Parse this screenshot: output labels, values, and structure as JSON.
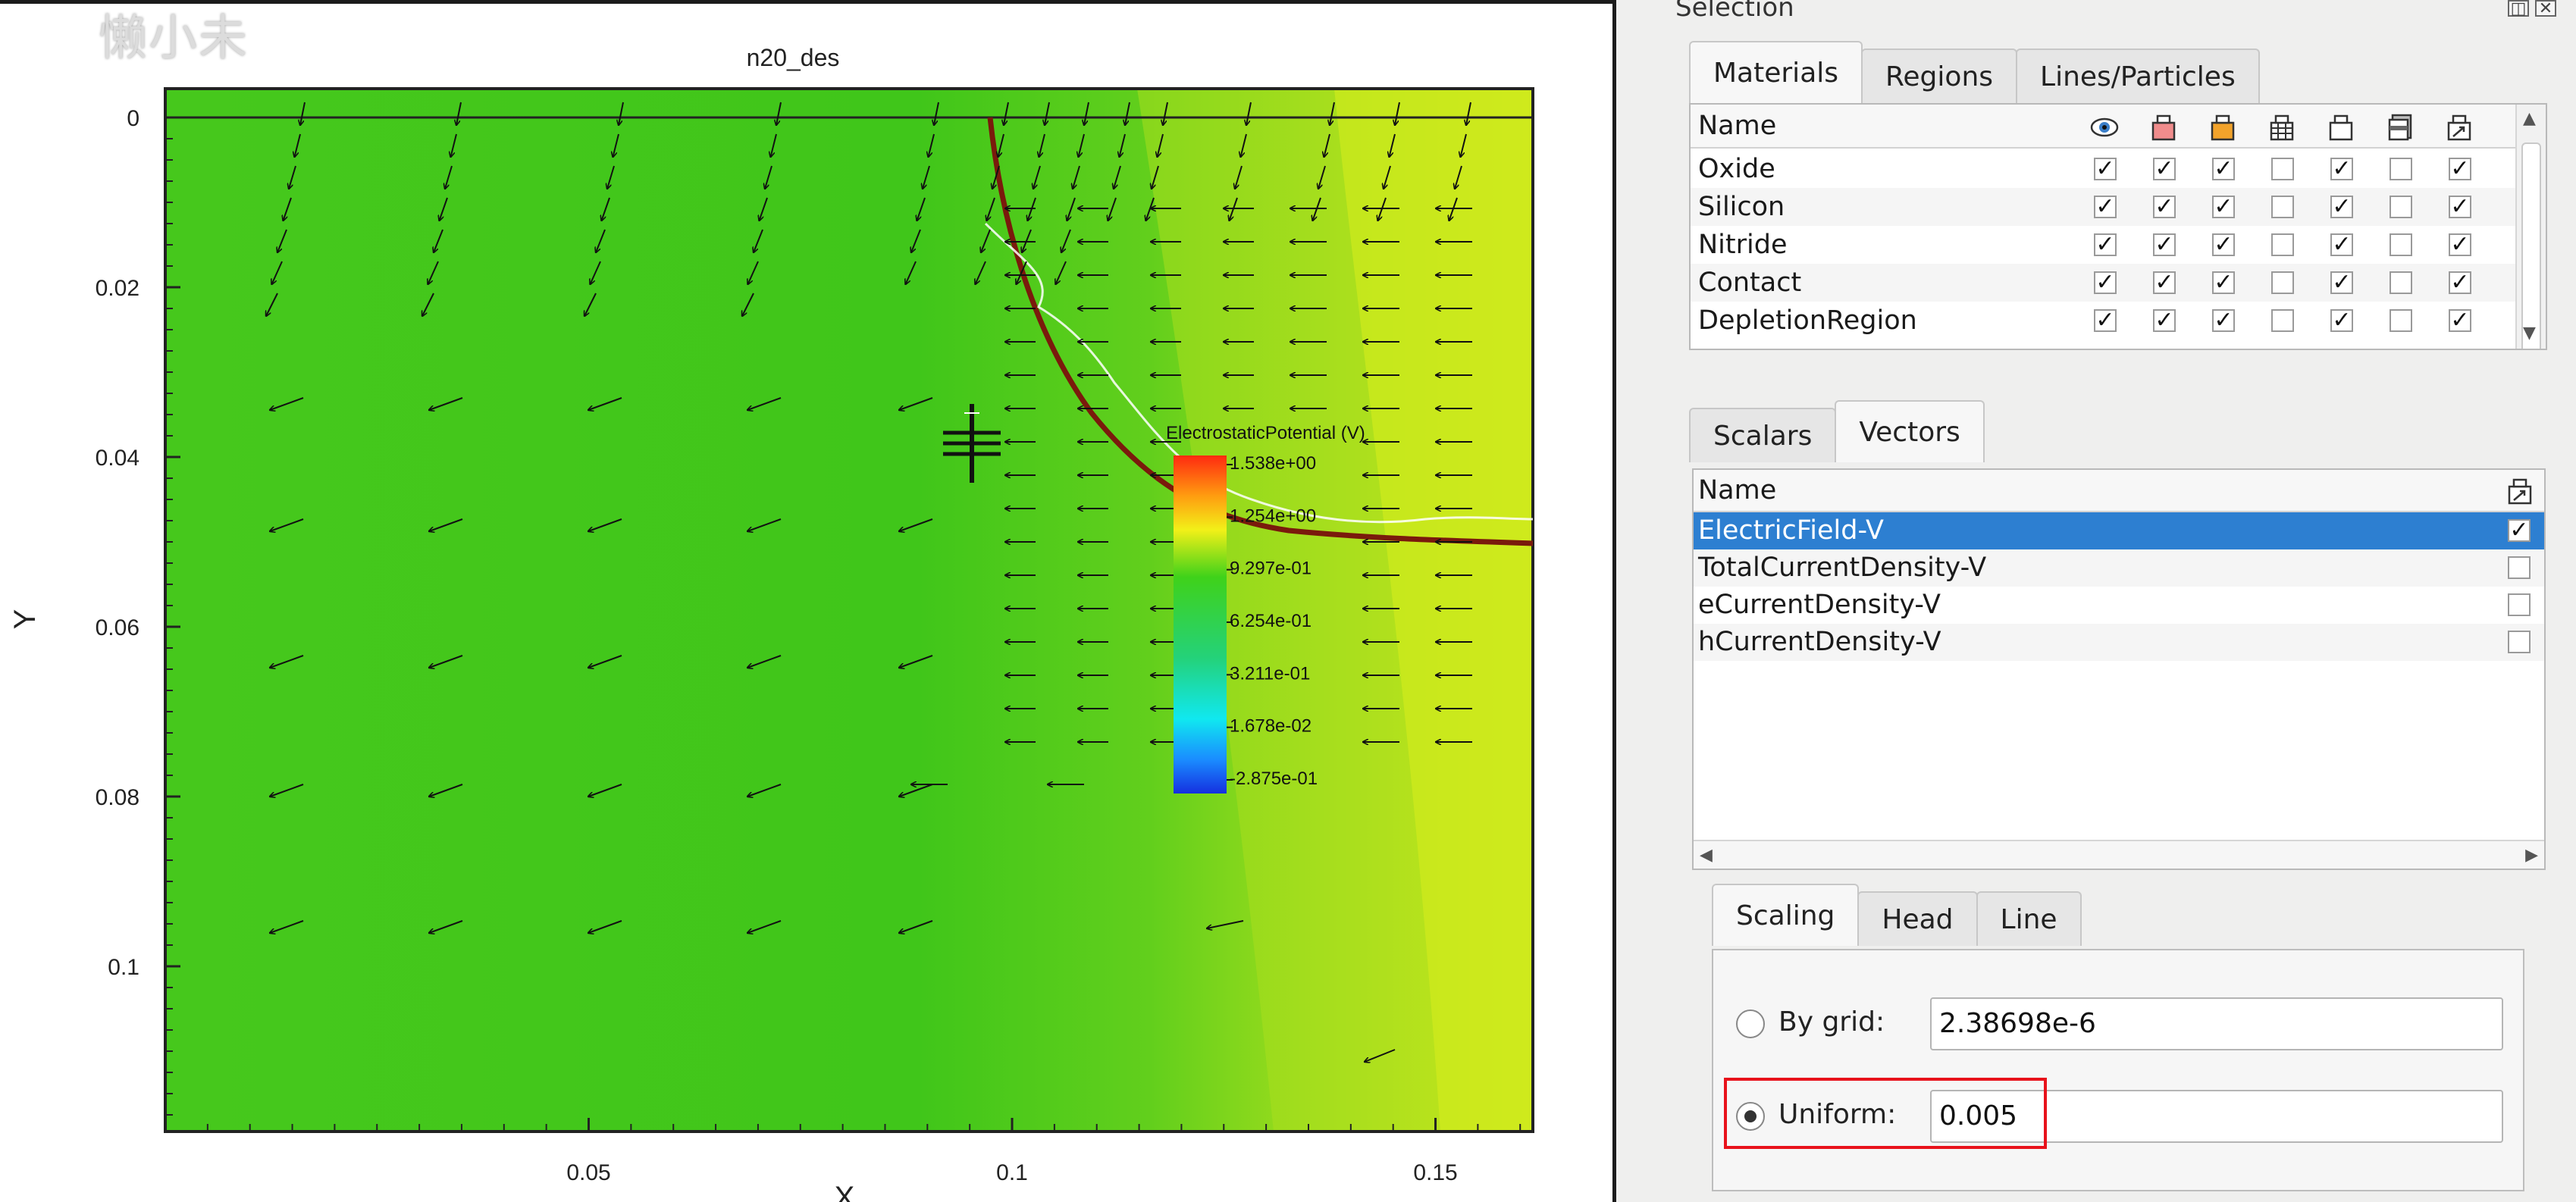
{
  "watermark_text": "懒小未",
  "plot": {
    "title": "n20_des",
    "x_axis_label": "X",
    "y_axis_label": "Y",
    "x_tick_labels": [
      "0.05",
      "0.1",
      "0.15"
    ],
    "y_tick_labels": [
      "0",
      "0.02",
      "0.04",
      "0.06",
      "0.08",
      "0.1"
    ],
    "legend": {
      "title": "ElectrostaticPotential (V)",
      "values": [
        "1.538e+00",
        "1.254e+00",
        "9.297e-01",
        "6.254e-01",
        "3.211e-01",
        "1.678e-02",
        "-2.875e-01"
      ]
    },
    "colors": {
      "field_green": "#3fc81a",
      "field_yellow": "#e6ef1a",
      "junction_line": "#7a1a0c",
      "arrow": "#111111"
    }
  },
  "panel": {
    "title": "Selection",
    "window_buttons": [
      "restore-icon",
      "close-icon"
    ],
    "material_tabs": [
      "Materials",
      "Regions",
      "Lines/Particles"
    ],
    "material_table": {
      "name_header": "Name",
      "column_icons": [
        "eye-icon",
        "red-box-icon",
        "orange-box-icon",
        "mesh-box-icon",
        "outline-box-icon",
        "layered-box-icon",
        "vector-box-icon"
      ],
      "rows": [
        {
          "name": "Oxide",
          "checks": [
            true,
            true,
            true,
            false,
            true,
            false,
            true
          ]
        },
        {
          "name": "Silicon",
          "checks": [
            true,
            true,
            true,
            false,
            true,
            false,
            true
          ]
        },
        {
          "name": "Nitride",
          "checks": [
            true,
            true,
            true,
            false,
            true,
            false,
            true
          ]
        },
        {
          "name": "Contact",
          "checks": [
            true,
            true,
            true,
            false,
            true,
            false,
            true
          ]
        },
        {
          "name": "DepletionRegion",
          "checks": [
            true,
            true,
            true,
            false,
            true,
            false,
            true
          ]
        }
      ]
    },
    "data_tabs": [
      "Scalars",
      "Vectors"
    ],
    "vector_table": {
      "name_header": "Name",
      "rows": [
        {
          "name": "ElectricField-V",
          "checked": true
        },
        {
          "name": "TotalCurrentDensity-V",
          "checked": false
        },
        {
          "name": "eCurrentDensity-V",
          "checked": false
        },
        {
          "name": "hCurrentDensity-V",
          "checked": false
        }
      ]
    },
    "options_tabs": [
      "Scaling",
      "Head",
      "Line"
    ],
    "scaling": {
      "by_grid_label": "By grid:",
      "by_grid_value": "2.38698e-6",
      "uniform_label": "Uniform:",
      "uniform_value": "0.005",
      "selected": "Uniform"
    },
    "colors": {
      "selection_blue": "#2d7fd1",
      "highlight_red": "#e8121b"
    }
  }
}
